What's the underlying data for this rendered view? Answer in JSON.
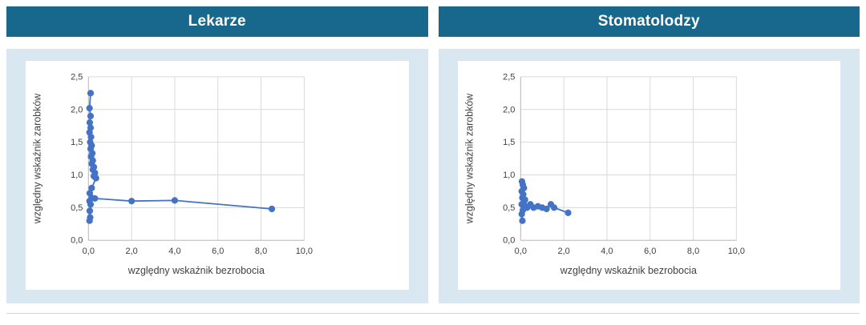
{
  "panels": [
    {
      "title": "Lekarze"
    },
    {
      "title": "Stomatolodzy"
    }
  ],
  "colors": {
    "header_bg": "#17688c",
    "panel_bg": "#d9e7f0",
    "series": "#4472c4",
    "grid": "#d9d9d9",
    "axis_line": "#bfbfbf",
    "axis_text": "#404040"
  },
  "chart_data": [
    {
      "type": "scatter",
      "title": "Lekarze",
      "xlabel": "względny wskaźnik bezrobocia",
      "ylabel": "względny wskaźnik zarobków",
      "xlim": [
        0,
        10
      ],
      "ylim": [
        0,
        2.5
      ],
      "grid": true,
      "legend": "none",
      "xticks": {
        "values": [
          0,
          2,
          4,
          6,
          8,
          10
        ],
        "labels": [
          "0,0",
          "2,0",
          "4,0",
          "6,0",
          "8,0",
          "10,0"
        ]
      },
      "yticks": {
        "values": [
          0,
          0.5,
          1.0,
          1.5,
          2.0,
          2.5
        ],
        "labels": [
          "0,0",
          "0,5",
          "1,0",
          "1,5",
          "2,0",
          "2,5"
        ]
      },
      "series": [
        {
          "name": "Lekarze",
          "color": "#4472c4",
          "marker": "circle",
          "line": true,
          "points": [
            [
              0.1,
              2.25
            ],
            [
              0.05,
              2.02
            ],
            [
              0.1,
              1.9
            ],
            [
              0.06,
              1.8
            ],
            [
              0.1,
              1.72
            ],
            [
              0.05,
              1.65
            ],
            [
              0.12,
              1.58
            ],
            [
              0.08,
              1.5
            ],
            [
              0.15,
              1.45
            ],
            [
              0.1,
              1.4
            ],
            [
              0.18,
              1.33
            ],
            [
              0.12,
              1.28
            ],
            [
              0.2,
              1.22
            ],
            [
              0.15,
              1.17
            ],
            [
              0.25,
              1.12
            ],
            [
              0.2,
              1.08
            ],
            [
              0.3,
              1.03
            ],
            [
              0.25,
              0.98
            ],
            [
              0.35,
              0.95
            ],
            [
              0.15,
              0.8
            ],
            [
              0.06,
              0.72
            ],
            [
              0.05,
              0.6
            ],
            [
              0.1,
              0.55
            ],
            [
              0.06,
              0.45
            ],
            [
              0.08,
              0.35
            ],
            [
              0.05,
              0.3
            ],
            [
              0.15,
              0.65
            ],
            [
              0.3,
              0.64
            ],
            [
              2.0,
              0.6
            ],
            [
              4.0,
              0.61
            ],
            [
              8.5,
              0.48
            ]
          ]
        }
      ]
    },
    {
      "type": "scatter",
      "title": "Stomatolodzy",
      "xlabel": "względny wskaźnik bezrobocia",
      "ylabel": "względny wskaźnik zarobków",
      "xlim": [
        0,
        10
      ],
      "ylim": [
        0,
        2.5
      ],
      "grid": true,
      "legend": "none",
      "xticks": {
        "values": [
          0,
          2,
          4,
          6,
          8,
          10
        ],
        "labels": [
          "0,0",
          "2,0",
          "4,0",
          "6,0",
          "8,0",
          "10,0"
        ]
      },
      "yticks": {
        "values": [
          0,
          0.5,
          1.0,
          1.5,
          2.0,
          2.5
        ],
        "labels": [
          "0,0",
          "0,5",
          "1,0",
          "1,5",
          "2,0",
          "2,5"
        ]
      },
      "series": [
        {
          "name": "Stomatolodzy",
          "color": "#4472c4",
          "marker": "circle",
          "line": true,
          "points": [
            [
              0.08,
              0.3
            ],
            [
              0.05,
              0.4
            ],
            [
              0.1,
              0.46
            ],
            [
              0.05,
              0.55
            ],
            [
              0.08,
              0.65
            ],
            [
              0.05,
              0.75
            ],
            [
              0.1,
              0.85
            ],
            [
              0.06,
              0.9
            ],
            [
              0.15,
              0.8
            ],
            [
              0.12,
              0.7
            ],
            [
              0.2,
              0.62
            ],
            [
              0.15,
              0.55
            ],
            [
              0.3,
              0.5
            ],
            [
              0.45,
              0.55
            ],
            [
              0.6,
              0.5
            ],
            [
              0.8,
              0.52
            ],
            [
              1.0,
              0.5
            ],
            [
              1.2,
              0.48
            ],
            [
              1.4,
              0.55
            ],
            [
              1.55,
              0.5
            ],
            [
              2.2,
              0.42
            ]
          ]
        }
      ]
    }
  ]
}
